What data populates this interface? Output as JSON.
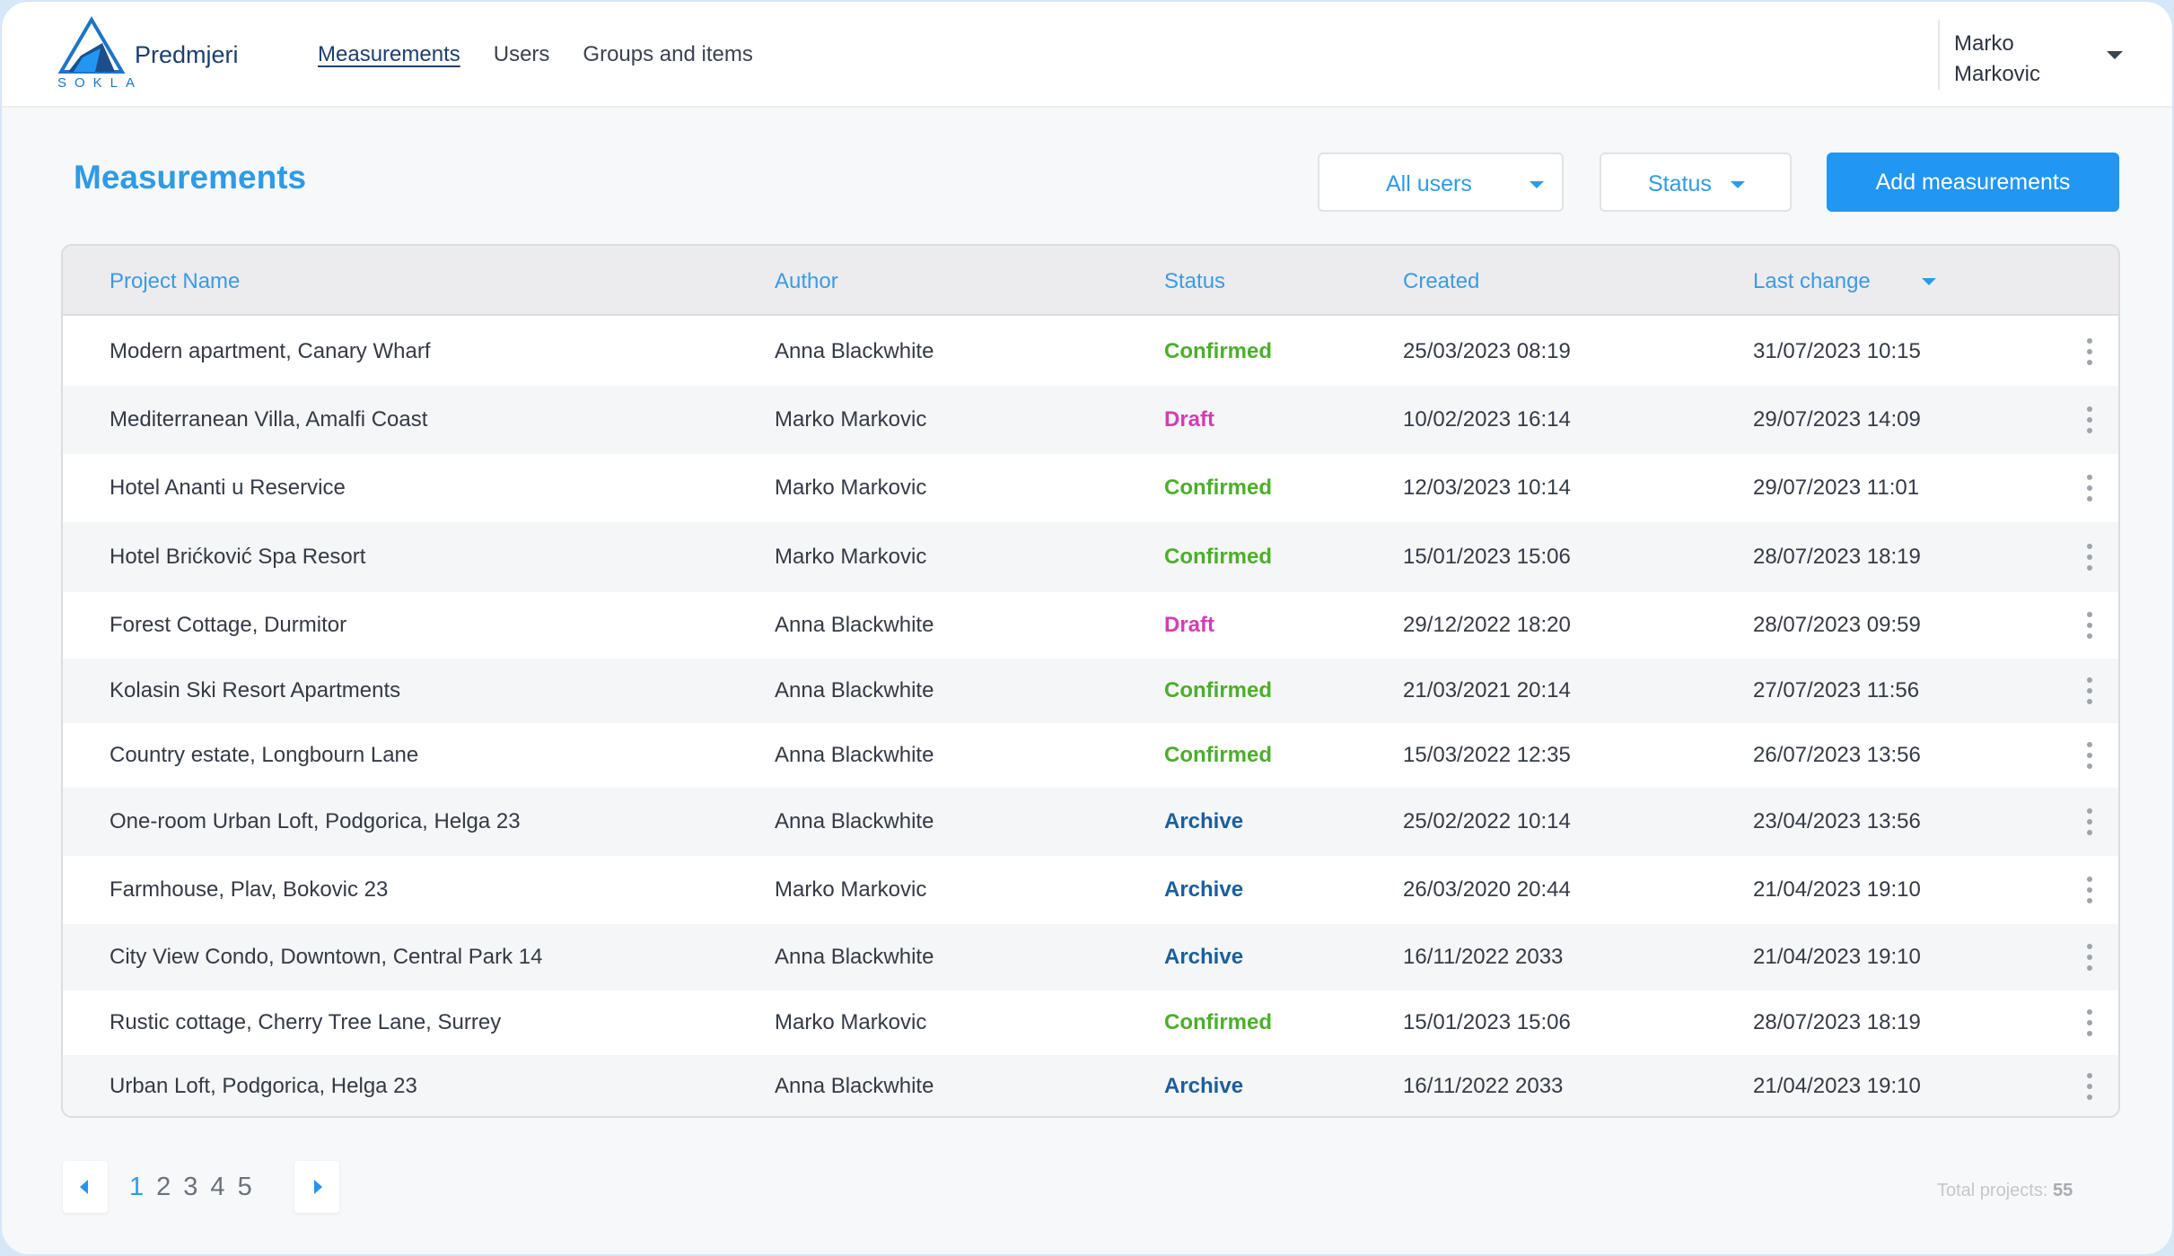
{
  "app": {
    "brand": "Predmjeri",
    "logo_text": "SOKLA"
  },
  "nav": {
    "items": [
      "Measurements",
      "Users",
      "Groups and items"
    ]
  },
  "user": {
    "first_name": "Marko",
    "last_name": "Markovic"
  },
  "page": {
    "title": "Measurements"
  },
  "toolbar": {
    "users_filter": "All users",
    "status_filter": "Status",
    "add_button": "Add measurements"
  },
  "table": {
    "columns": [
      "Project Name",
      "Author",
      "Status",
      "Created",
      "Last change"
    ],
    "sort_column": "Last change",
    "rows": [
      {
        "project": "Modern apartment, Canary Wharf",
        "author": "Anna Blackwhite",
        "status": "Confirmed",
        "created": "25/03/2023  08:19",
        "changed": "31/07/2023 10:15"
      },
      {
        "project": "Mediterranean Villa, Amalfi Coast",
        "author": "Marko Markovic",
        "status": "Draft",
        "created": "10/02/2023  16:14",
        "changed": "29/07/2023  14:09"
      },
      {
        "project": "Hotel Ananti u Reservice",
        "author": "Marko Markovic",
        "status": "Confirmed",
        "created": "12/03/2023  10:14",
        "changed": "29/07/2023  11:01"
      },
      {
        "project": "Hotel Brićković Spa Resort",
        "author": "Marko Markovic",
        "status": "Confirmed",
        "created": "15/01/2023  15:06",
        "changed": "28/07/2023  18:19"
      },
      {
        "project": "Forest Cottage, Durmitor",
        "author": "Anna Blackwhite",
        "status": "Draft",
        "created": "29/12/2022  18:20",
        "changed": "28/07/2023  09:59"
      },
      {
        "project": "Kolasin Ski Resort Apartments",
        "author": "Anna Blackwhite",
        "status": "Confirmed",
        "created": "21/03/2021  20:14",
        "changed": "27/07/2023  11:56"
      },
      {
        "project": "Country estate, Longbourn Lane",
        "author": "Anna Blackwhite",
        "status": "Confirmed",
        "created": "15/03/2022  12:35",
        "changed": "26/07/2023  13:56"
      },
      {
        "project": "One-room Urban Loft, Podgorica, Helga 23",
        "author": "Anna Blackwhite",
        "status": "Archive",
        "created": "25/02/2022 10:14",
        "changed": "23/04/2023  13:56"
      },
      {
        "project": "Farmhouse, Plav, Bokovic 23",
        "author": "Marko Markovic",
        "status": "Archive",
        "created": "26/03/2020  20:44",
        "changed": "21/04/2023  19:10"
      },
      {
        "project": "City View Condo, Downtown, Central Park 14",
        "author": "Anna Blackwhite",
        "status": "Archive",
        "created": "16/11/2022  2033",
        "changed": "21/04/2023  19:10"
      },
      {
        "project": "Rustic cottage, Cherry Tree Lane, Surrey",
        "author": "Marko Markovic",
        "status": "Confirmed",
        "created": "15/01/2023  15:06",
        "changed": "28/07/2023  18:19"
      },
      {
        "project": "Urban Loft, Podgorica, Helga 23",
        "author": "Anna Blackwhite",
        "status": "Archive",
        "created": "16/11/2022  2033",
        "changed": "21/04/2023  19:10"
      }
    ]
  },
  "status_colors": {
    "Confirmed": "#4caf2a",
    "Draft": "#d63cb5",
    "Archive": "#1a5f9e"
  },
  "pagination": {
    "pages": [
      "1",
      "2",
      "3",
      "4",
      "5"
    ],
    "current": "1",
    "total_label": "Total projects:",
    "total_value": "55"
  }
}
